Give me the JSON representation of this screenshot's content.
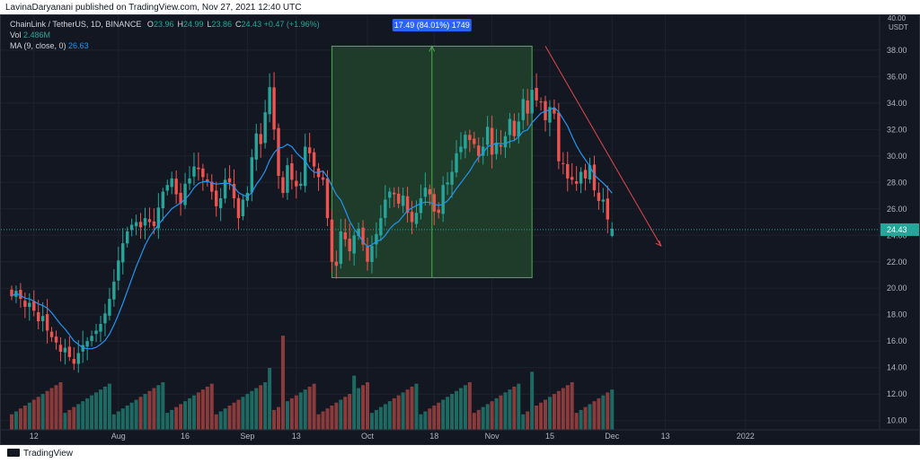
{
  "header": {
    "published_text": "LavinaDaryanani published on TradingView.com, Nov 27, 2021 12:40 UTC"
  },
  "legend": {
    "symbol_line": "ChainLink / TetherUS, 1D, BINANCE",
    "ohlc": [
      {
        "label": "O",
        "value": "23.96"
      },
      {
        "label": "H",
        "value": "24.99"
      },
      {
        "label": "L",
        "value": "23.86"
      },
      {
        "label": "C",
        "value": "24.43"
      }
    ],
    "change": "+0.47 (+1.96%)",
    "vol_label": "Vol",
    "vol_value": "2.486M",
    "ma_label": "MA (9, close, 0)",
    "ma_value": "26.63"
  },
  "measure_box": {
    "label": "17.49 (84.01%) 1749",
    "low": 20.8,
    "high": 38.3,
    "start_index": 72,
    "end_index": 117
  },
  "last_price": {
    "label": "24.43",
    "value": 24.43
  },
  "footer": {
    "brand": "TradingView"
  },
  "colors": {
    "up": "#26a69a",
    "down": "#ef5350",
    "ma": "#2196f3",
    "bg": "#131722",
    "measure_fill": "#1f3b29",
    "measure_border": "#4caf50",
    "label_bg": "#2962ff"
  },
  "chart_data": {
    "type": "candlestick",
    "x_ticks": [
      {
        "index": 5,
        "label": "12"
      },
      {
        "index": 24,
        "label": "Aug"
      },
      {
        "index": 39,
        "label": "16"
      },
      {
        "index": 53,
        "label": "Sep"
      },
      {
        "index": 64,
        "label": "13"
      },
      {
        "index": 80,
        "label": "Oct"
      },
      {
        "index": 95,
        "label": "18"
      },
      {
        "index": 108,
        "label": "Nov"
      },
      {
        "index": 121,
        "label": "15"
      },
      {
        "index": 135,
        "label": "Dec"
      },
      {
        "index": 147,
        "label": "13"
      },
      {
        "index": 165,
        "label": "2022"
      }
    ],
    "y_ticks": [
      10,
      12,
      14,
      16,
      18,
      20,
      22,
      24,
      26,
      28,
      30,
      32,
      34,
      36,
      38
    ],
    "ylim": [
      9.3,
      40.5
    ],
    "y_axis_unit": "USDT",
    "y_axis_top_label": "40.00",
    "close": [
      19.4,
      19.8,
      19.2,
      18.6,
      18.9,
      18.3,
      17.5,
      17.9,
      16.8,
      16.3,
      15.9,
      15.2,
      15.5,
      14.8,
      14.3,
      15.1,
      15.7,
      16.0,
      16.4,
      16.8,
      17.3,
      18.1,
      19.2,
      20.5,
      22.1,
      23.4,
      24.3,
      24.8,
      25.0,
      24.6,
      25.3,
      25.0,
      24.7,
      26.1,
      27.3,
      27.8,
      28.3,
      27.1,
      26.4,
      27.9,
      28.3,
      29.2,
      29.0,
      28.4,
      28.1,
      27.3,
      26.2,
      26.8,
      28.2,
      28.0,
      26.8,
      25.3,
      26.7,
      27.2,
      29.9,
      31.7,
      30.9,
      33.3,
      35.2,
      32.0,
      28.5,
      27.2,
      29.3,
      28.2,
      27.7,
      27.9,
      30.7,
      30.2,
      29.2,
      28.4,
      28.2,
      25.3,
      22.0,
      21.7,
      24.3,
      23.7,
      22.8,
      24.0,
      24.5,
      23.3,
      22.0,
      23.2,
      24.1,
      25.3,
      26.7,
      27.3,
      27.1,
      26.4,
      27.0,
      25.7,
      25.0,
      25.7,
      26.8,
      27.6,
      27.1,
      25.8,
      25.7,
      27.8,
      28.0,
      28.8,
      30.2,
      30.7,
      31.6,
      31.2,
      30.9,
      30.0,
      30.7,
      32.2,
      30.1,
      31.0,
      30.7,
      31.5,
      32.8,
      31.5,
      32.6,
      34.3,
      33.2,
      35.0,
      34.2,
      34.1,
      32.7,
      33.7,
      33.2,
      29.6,
      29.4,
      28.3,
      28.2,
      27.9,
      28.8,
      28.3,
      29.3,
      27.4,
      26.6,
      26.7,
      25.2,
      24.5
    ],
    "moving_average": {
      "name": "MA (9, close, 0)",
      "period": 9
    },
    "volume_ylim": [
      0,
      8
    ],
    "annotations": [
      {
        "type": "trend_line",
        "start": {
          "index": 120,
          "price": 38.3
        },
        "end": {
          "index": 146,
          "price": 23.2
        }
      },
      {
        "type": "price_line",
        "price": 24.43
      }
    ]
  }
}
